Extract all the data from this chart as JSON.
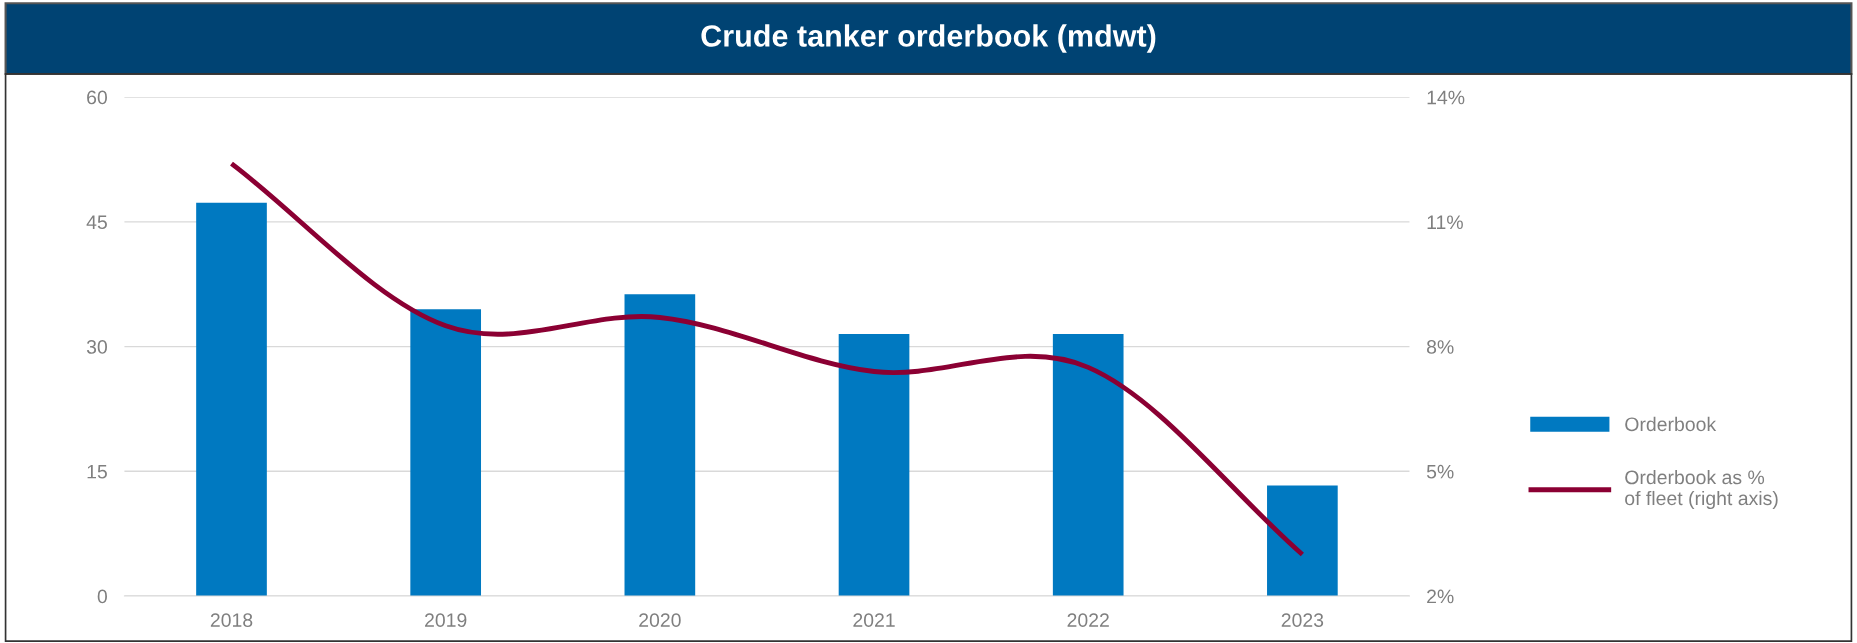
{
  "chart_data": {
    "type": "bar",
    "title": "Crude tanker orderbook (mdwt)",
    "categories": [
      "2018",
      "2019",
      "2020",
      "2021",
      "2022",
      "2023"
    ],
    "series": [
      {
        "name": "Orderbook",
        "color": "#0079c1",
        "values": [
          47.3,
          34.5,
          36.3,
          31.5,
          31.5,
          13.3
        ]
      },
      {
        "name": "Orderbook as %\nof fleet (right axis)",
        "type": "line",
        "axis": "y2",
        "color": "#8b0033",
        "values": [
          12.4,
          8.5,
          8.7,
          7.4,
          7.5,
          3.0
        ]
      }
    ],
    "ylim": [
      0,
      60
    ],
    "yticks": [
      0,
      15,
      30,
      45,
      60
    ],
    "y2lim": [
      2,
      14
    ],
    "y2ticks": [
      {
        "value": 2,
        "label": "2%"
      },
      {
        "value": 5,
        "label": "5%"
      },
      {
        "value": 8,
        "label": "8%"
      },
      {
        "value": 11,
        "label": "11%"
      },
      {
        "value": 14,
        "label": "14%"
      }
    ],
    "grid": "y",
    "legend": "right",
    "marker": "none",
    "line_style": "solid"
  }
}
